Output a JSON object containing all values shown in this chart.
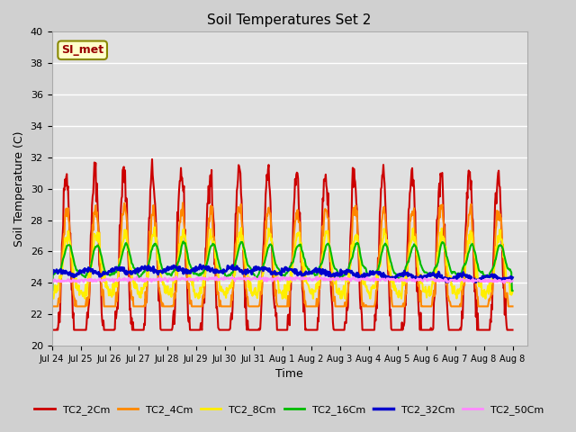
{
  "title": "Soil Temperatures Set 2",
  "xlabel": "Time",
  "ylabel": "Soil Temperature (C)",
  "ylim": [
    20,
    40
  ],
  "annotation": "SI_met",
  "series_labels": [
    "TC2_2Cm",
    "TC2_4Cm",
    "TC2_8Cm",
    "TC2_16Cm",
    "TC2_32Cm",
    "TC2_50Cm"
  ],
  "series_colors": [
    "#cc0000",
    "#ff8800",
    "#ffee00",
    "#00bb00",
    "#0000cc",
    "#ff88ff"
  ],
  "series_linewidths": [
    1.5,
    1.5,
    1.5,
    1.5,
    2.0,
    1.5
  ],
  "bg_color": "#e0e0e0",
  "fig_color": "#d0d0d0",
  "tick_labels": [
    "Jul 24",
    "Jul 25",
    "Jul 26",
    "Jul 27",
    "Jul 28",
    "Jul 29",
    "Jul 30",
    "Jul 31",
    "Aug 1",
    "Aug 2",
    "Aug 3",
    "Aug 4",
    "Aug 5",
    "Aug 6",
    "Aug 7",
    "Aug 8",
    "Aug 8"
  ],
  "yticks": [
    20,
    22,
    24,
    26,
    28,
    30,
    32,
    34,
    36,
    38,
    40
  ]
}
